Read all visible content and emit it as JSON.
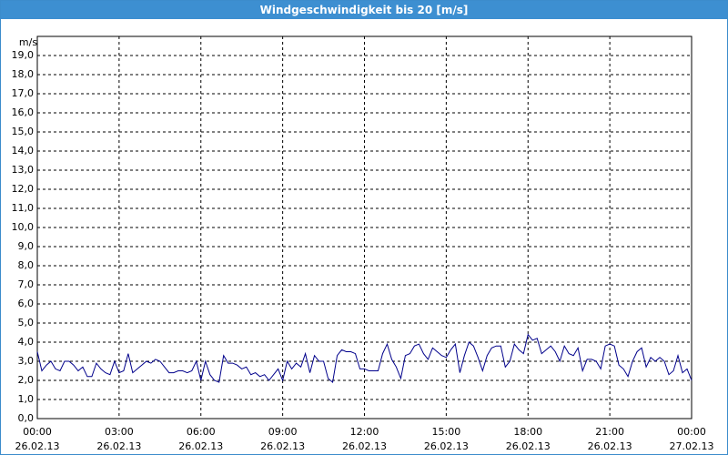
{
  "chart_data": {
    "type": "line",
    "title": "Windgeschwindigkeit bis 20 [m/s]",
    "ylabel": "m/s",
    "xlim": [
      "2013-02-26T00:00",
      "2013-02-27T00:00"
    ],
    "xticks": [
      {
        "value": "2013-02-26T00:00",
        "label": [
          "00:00",
          "26.02.13"
        ]
      },
      {
        "value": "2013-02-26T03:00",
        "label": [
          "03:00",
          "26.02.13"
        ]
      },
      {
        "value": "2013-02-26T06:00",
        "label": [
          "06:00",
          "26.02.13"
        ]
      },
      {
        "value": "2013-02-26T09:00",
        "label": [
          "09:00",
          "26.02.13"
        ]
      },
      {
        "value": "2013-02-26T12:00",
        "label": [
          "12:00",
          "26.02.13"
        ]
      },
      {
        "value": "2013-02-26T15:00",
        "label": [
          "15:00",
          "26.02.13"
        ]
      },
      {
        "value": "2013-02-26T18:00",
        "label": [
          "18:00",
          "26.02.13"
        ]
      },
      {
        "value": "2013-02-26T21:00",
        "label": [
          "21:00",
          "26.02.13"
        ]
      },
      {
        "value": "2013-02-27T00:00",
        "label": [
          "00:00",
          "27.02.13"
        ]
      }
    ],
    "ylim": [
      0,
      20
    ],
    "yticks": [
      {
        "value": 0,
        "label": "0,0"
      },
      {
        "value": 1,
        "label": "1,0"
      },
      {
        "value": 2,
        "label": "2,0"
      },
      {
        "value": 3,
        "label": "3,0"
      },
      {
        "value": 4,
        "label": "4,0"
      },
      {
        "value": 5,
        "label": "5,0"
      },
      {
        "value": 6,
        "label": "6,0"
      },
      {
        "value": 7,
        "label": "7,0"
      },
      {
        "value": 8,
        "label": "8,0"
      },
      {
        "value": 9,
        "label": "9,0"
      },
      {
        "value": 10,
        "label": "10,0"
      },
      {
        "value": 11,
        "label": "11,0"
      },
      {
        "value": 12,
        "label": "12,0"
      },
      {
        "value": 13,
        "label": "13,0"
      },
      {
        "value": 14,
        "label": "14,0"
      },
      {
        "value": 15,
        "label": "15,0"
      },
      {
        "value": 16,
        "label": "16,0"
      },
      {
        "value": 17,
        "label": "17,0"
      },
      {
        "value": 18,
        "label": "18,0"
      },
      {
        "value": 19,
        "label": "19,0"
      }
    ],
    "grid": true,
    "x": [
      "2013-02-26T00:00",
      "2013-02-26T00:10",
      "2013-02-26T00:20",
      "2013-02-26T00:30",
      "2013-02-26T00:40",
      "2013-02-26T00:50",
      "2013-02-26T01:00",
      "2013-02-26T01:10",
      "2013-02-26T01:20",
      "2013-02-26T01:30",
      "2013-02-26T01:40",
      "2013-02-26T01:50",
      "2013-02-26T02:00",
      "2013-02-26T02:10",
      "2013-02-26T02:20",
      "2013-02-26T02:30",
      "2013-02-26T02:40",
      "2013-02-26T02:50",
      "2013-02-26T03:00",
      "2013-02-26T03:10",
      "2013-02-26T03:20",
      "2013-02-26T03:30",
      "2013-02-26T03:40",
      "2013-02-26T03:50",
      "2013-02-26T04:00",
      "2013-02-26T04:10",
      "2013-02-26T04:20",
      "2013-02-26T04:30",
      "2013-02-26T04:40",
      "2013-02-26T04:50",
      "2013-02-26T05:00",
      "2013-02-26T05:10",
      "2013-02-26T05:20",
      "2013-02-26T05:30",
      "2013-02-26T05:40",
      "2013-02-26T05:50",
      "2013-02-26T06:00",
      "2013-02-26T06:10",
      "2013-02-26T06:20",
      "2013-02-26T06:30",
      "2013-02-26T06:40",
      "2013-02-26T06:50",
      "2013-02-26T07:00",
      "2013-02-26T07:10",
      "2013-02-26T07:20",
      "2013-02-26T07:30",
      "2013-02-26T07:40",
      "2013-02-26T07:50",
      "2013-02-26T08:00",
      "2013-02-26T08:10",
      "2013-02-26T08:20",
      "2013-02-26T08:30",
      "2013-02-26T08:40",
      "2013-02-26T08:50",
      "2013-02-26T09:00",
      "2013-02-26T09:10",
      "2013-02-26T09:20",
      "2013-02-26T09:30",
      "2013-02-26T09:40",
      "2013-02-26T09:50",
      "2013-02-26T10:00",
      "2013-02-26T10:10",
      "2013-02-26T10:20",
      "2013-02-26T10:30",
      "2013-02-26T10:40",
      "2013-02-26T10:50",
      "2013-02-26T11:00",
      "2013-02-26T11:10",
      "2013-02-26T11:20",
      "2013-02-26T11:30",
      "2013-02-26T11:40",
      "2013-02-26T11:50",
      "2013-02-26T12:00",
      "2013-02-26T12:10",
      "2013-02-26T12:20",
      "2013-02-26T12:30",
      "2013-02-26T12:40",
      "2013-02-26T12:50",
      "2013-02-26T13:00",
      "2013-02-26T13:10",
      "2013-02-26T13:20",
      "2013-02-26T13:30",
      "2013-02-26T13:40",
      "2013-02-26T13:50",
      "2013-02-26T14:00",
      "2013-02-26T14:10",
      "2013-02-26T14:20",
      "2013-02-26T14:30",
      "2013-02-26T14:40",
      "2013-02-26T14:50",
      "2013-02-26T15:00",
      "2013-02-26T15:10",
      "2013-02-26T15:20",
      "2013-02-26T15:30",
      "2013-02-26T15:40",
      "2013-02-26T15:50",
      "2013-02-26T16:00",
      "2013-02-26T16:10",
      "2013-02-26T16:20",
      "2013-02-26T16:30",
      "2013-02-26T16:40",
      "2013-02-26T16:50",
      "2013-02-26T17:00",
      "2013-02-26T17:10",
      "2013-02-26T17:20",
      "2013-02-26T17:30",
      "2013-02-26T17:40",
      "2013-02-26T17:50",
      "2013-02-26T18:00",
      "2013-02-26T18:10",
      "2013-02-26T18:20",
      "2013-02-26T18:30",
      "2013-02-26T18:40",
      "2013-02-26T18:50",
      "2013-02-26T19:00",
      "2013-02-26T19:10",
      "2013-02-26T19:20",
      "2013-02-26T19:30",
      "2013-02-26T19:40",
      "2013-02-26T19:50",
      "2013-02-26T20:00",
      "2013-02-26T20:10",
      "2013-02-26T20:20",
      "2013-02-26T20:30",
      "2013-02-26T20:40",
      "2013-02-26T20:50",
      "2013-02-26T21:00",
      "2013-02-26T21:10",
      "2013-02-26T21:20",
      "2013-02-26T21:30",
      "2013-02-26T21:40",
      "2013-02-26T21:50",
      "2013-02-26T22:00",
      "2013-02-26T22:10",
      "2013-02-26T22:20",
      "2013-02-26T22:30",
      "2013-02-26T22:40",
      "2013-02-26T22:50",
      "2013-02-26T23:00",
      "2013-02-26T23:10",
      "2013-02-26T23:20",
      "2013-02-26T23:30",
      "2013-02-26T23:40",
      "2013-02-26T23:50",
      "2013-02-27T00:00"
    ],
    "series": [
      {
        "color": "#00008b",
        "values": [
          3.5,
          2.5,
          2.8,
          3.0,
          2.6,
          2.5,
          3.0,
          3.0,
          2.8,
          2.5,
          2.7,
          2.2,
          2.2,
          2.9,
          2.6,
          2.4,
          2.3,
          3.0,
          2.4,
          2.5,
          3.4,
          2.4,
          2.6,
          2.8,
          3.0,
          2.9,
          3.1,
          3.0,
          2.7,
          2.4,
          2.4,
          2.5,
          2.5,
          2.4,
          2.5,
          3.0,
          2.0,
          3.0,
          2.3,
          2.0,
          1.9,
          3.3,
          2.9,
          2.9,
          2.8,
          2.6,
          2.7,
          2.3,
          2.4,
          2.2,
          2.3,
          2.0,
          2.3,
          2.6,
          2.0,
          3.0,
          2.6,
          2.9,
          2.7,
          3.4,
          2.4,
          3.3,
          3.0,
          3.0,
          2.1,
          1.9,
          3.3,
          3.6,
          3.5,
          3.5,
          3.4,
          2.6,
          2.6,
          2.5,
          2.5,
          2.5,
          3.4,
          3.9,
          3.1,
          2.7,
          2.1,
          3.3,
          3.4,
          3.8,
          3.9,
          3.4,
          3.1,
          3.7,
          3.5,
          3.3,
          3.2,
          3.6,
          3.9,
          2.4,
          3.3,
          4.0,
          3.8,
          3.2,
          2.5,
          3.3,
          3.7,
          3.8,
          3.8,
          2.7,
          3.0,
          3.9,
          3.6,
          3.4,
          4.4,
          4.1,
          4.2,
          3.4,
          3.6,
          3.8,
          3.5,
          3.0,
          3.8,
          3.4,
          3.3,
          3.7,
          2.5,
          3.1,
          3.1,
          3.0,
          2.6,
          3.8,
          3.9,
          3.8,
          2.8,
          2.6,
          2.2,
          3.0,
          3.5,
          3.7,
          2.7,
          3.2,
          3.0,
          3.2,
          3.0,
          2.3,
          2.5,
          3.3,
          2.4,
          2.6,
          2.0
        ]
      }
    ]
  }
}
